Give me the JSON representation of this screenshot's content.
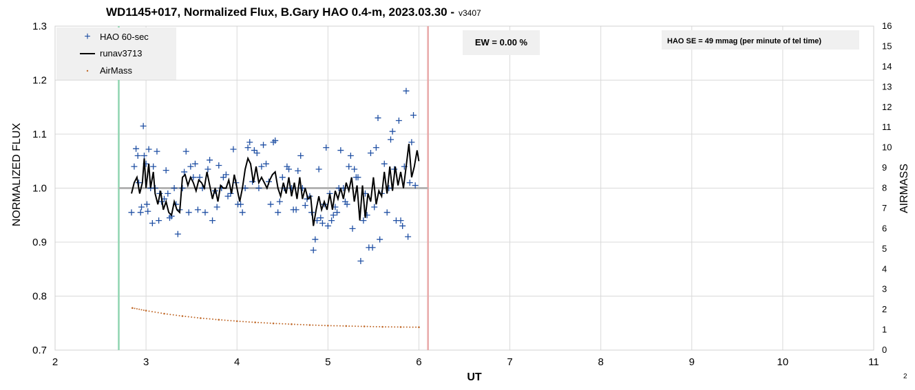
{
  "chart_data": {
    "type": "scatter",
    "title": "WD1145+017, Normalized Flux, B.Gary HAO 0.4-m, 2023.03.30 -",
    "title_version": "v3407",
    "xlabel": "UT",
    "ylabel": "NORMALIZED FLUX",
    "y2label": "AIRMASS",
    "xlim": [
      2,
      11
    ],
    "ylim": [
      0.7,
      1.3
    ],
    "y2lim": [
      0,
      16
    ],
    "x_ticks": [
      "2",
      "3",
      "4",
      "5",
      "6",
      "7",
      "8",
      "9",
      "10",
      "11"
    ],
    "y_ticks": [
      "0.7",
      "0.8",
      "0.9",
      "1.0",
      "1.1",
      "1.2",
      "1.3"
    ],
    "y2_ticks": [
      "0",
      "1",
      "2",
      "3",
      "4",
      "5",
      "6",
      "7",
      "8",
      "9",
      "10",
      "11",
      "12",
      "13",
      "14",
      "15",
      "16"
    ],
    "grid": true,
    "legend_placement": "top-left",
    "page_number": "2",
    "annotations": {
      "ew": "EW = 0.00 %",
      "se": "HAO SE =  49 mmag (per minute of tel time)"
    },
    "reference_lines": {
      "baseline_y": 1.0,
      "baseline_x_range": [
        2.7,
        6.1
      ],
      "start_ut": 2.7,
      "end_ut": 6.1
    },
    "colors": {
      "points": "#1f4fa3",
      "runav": "#000000",
      "airmass": "#c0692a",
      "start_line": "#8fd4b0",
      "end_line": "#e8a8a8",
      "baseline": "#b3b3b3",
      "grid": "#d9d9d9"
    },
    "series": [
      {
        "name": "HAO 60-sec",
        "marker": "plus",
        "points": [
          [
            2.84,
            0.955
          ],
          [
            2.87,
            1.04
          ],
          [
            2.89,
            1.073
          ],
          [
            2.91,
            1.06
          ],
          [
            2.92,
            1.01
          ],
          [
            2.94,
            0.955
          ],
          [
            2.95,
            0.965
          ],
          [
            2.97,
            1.115
          ],
          [
            2.98,
            1.06
          ],
          [
            3.0,
            1.045
          ],
          [
            3.01,
            0.97
          ],
          [
            3.02,
            0.957
          ],
          [
            3.03,
            1.072
          ],
          [
            3.05,
            1.0
          ],
          [
            3.07,
            0.935
          ],
          [
            3.08,
            1.04
          ],
          [
            3.1,
            1.0
          ],
          [
            3.12,
            1.068
          ],
          [
            3.14,
            0.94
          ],
          [
            3.15,
            0.99
          ],
          [
            3.17,
            0.975
          ],
          [
            3.2,
            0.98
          ],
          [
            3.22,
            1.033
          ],
          [
            3.24,
            0.99
          ],
          [
            3.26,
            0.945
          ],
          [
            3.28,
            0.948
          ],
          [
            3.31,
            1.0
          ],
          [
            3.33,
            0.97
          ],
          [
            3.35,
            0.915
          ],
          [
            3.37,
            0.96
          ],
          [
            3.4,
            1.0
          ],
          [
            3.42,
            1.03
          ],
          [
            3.44,
            1.068
          ],
          [
            3.47,
            0.955
          ],
          [
            3.49,
            1.04
          ],
          [
            3.52,
            1.02
          ],
          [
            3.54,
            1.045
          ],
          [
            3.57,
            0.96
          ],
          [
            3.59,
            1.02
          ],
          [
            3.62,
            1.0
          ],
          [
            3.65,
            0.955
          ],
          [
            3.68,
            1.035
          ],
          [
            3.7,
            1.052
          ],
          [
            3.73,
            0.94
          ],
          [
            3.76,
            0.995
          ],
          [
            3.78,
            0.965
          ],
          [
            3.8,
            1.042
          ],
          [
            3.83,
            1.0
          ],
          [
            3.85,
            1.02
          ],
          [
            3.88,
            1.025
          ],
          [
            3.9,
            0.985
          ],
          [
            3.93,
            0.99
          ],
          [
            3.96,
            1.072
          ],
          [
            3.99,
            1.01
          ],
          [
            4.01,
            0.97
          ],
          [
            4.04,
            0.97
          ],
          [
            4.06,
            0.955
          ],
          [
            4.09,
            1.0
          ],
          [
            4.12,
            1.075
          ],
          [
            4.14,
            1.085
          ],
          [
            4.17,
            1.012
          ],
          [
            4.19,
            1.07
          ],
          [
            4.22,
            1.065
          ],
          [
            4.24,
            1.0
          ],
          [
            4.27,
            1.04
          ],
          [
            4.29,
            1.08
          ],
          [
            4.32,
            1.045
          ],
          [
            4.35,
            1.012
          ],
          [
            4.37,
            0.97
          ],
          [
            4.4,
            1.085
          ],
          [
            4.42,
            1.088
          ],
          [
            4.45,
            0.955
          ],
          [
            4.47,
            0.975
          ],
          [
            4.5,
            1.02
          ],
          [
            4.52,
            1.0
          ],
          [
            4.55,
            1.04
          ],
          [
            4.57,
            1.035
          ],
          [
            4.6,
            1.0
          ],
          [
            4.62,
            0.96
          ],
          [
            4.65,
            0.96
          ],
          [
            4.67,
            1.032
          ],
          [
            4.7,
            1.06
          ],
          [
            4.72,
            1.0
          ],
          [
            4.75,
            0.968
          ],
          [
            4.77,
            0.98
          ],
          [
            4.8,
            0.985
          ],
          [
            4.82,
            0.955
          ],
          [
            4.84,
            0.885
          ],
          [
            4.86,
            0.905
          ],
          [
            4.88,
            0.94
          ],
          [
            4.9,
            1.035
          ],
          [
            4.92,
            0.945
          ],
          [
            4.94,
            0.935
          ],
          [
            4.96,
            0.97
          ],
          [
            4.98,
            1.075
          ],
          [
            5.0,
            0.93
          ],
          [
            5.02,
            0.99
          ],
          [
            5.04,
            0.94
          ],
          [
            5.06,
            0.95
          ],
          [
            5.08,
            0.965
          ],
          [
            5.1,
            0.955
          ],
          [
            5.12,
            1.0
          ],
          [
            5.14,
            1.07
          ],
          [
            5.17,
            1.0
          ],
          [
            5.19,
            0.975
          ],
          [
            5.21,
            0.97
          ],
          [
            5.23,
            1.04
          ],
          [
            5.25,
            1.06
          ],
          [
            5.27,
            0.925
          ],
          [
            5.29,
            1.035
          ],
          [
            5.31,
            1.02
          ],
          [
            5.33,
            1.02
          ],
          [
            5.36,
            0.865
          ],
          [
            5.39,
            0.94
          ],
          [
            5.41,
            0.99
          ],
          [
            5.43,
            0.95
          ],
          [
            5.45,
            0.89
          ],
          [
            5.47,
            1.065
          ],
          [
            5.49,
            0.89
          ],
          [
            5.51,
            0.965
          ],
          [
            5.53,
            1.075
          ],
          [
            5.55,
            1.13
          ],
          [
            5.57,
            0.905
          ],
          [
            5.59,
            0.99
          ],
          [
            5.62,
            1.045
          ],
          [
            5.65,
            0.955
          ],
          [
            5.67,
            1.0
          ],
          [
            5.69,
            1.09
          ],
          [
            5.71,
            1.105
          ],
          [
            5.73,
            1.035
          ],
          [
            5.75,
            0.94
          ],
          [
            5.78,
            1.125
          ],
          [
            5.8,
            0.94
          ],
          [
            5.82,
            0.93
          ],
          [
            5.84,
            1.04
          ],
          [
            5.86,
            1.18
          ],
          [
            5.88,
            0.91
          ],
          [
            5.9,
            1.01
          ],
          [
            5.92,
            1.085
          ],
          [
            5.94,
            1.135
          ],
          [
            5.96,
            1.005
          ]
        ]
      },
      {
        "name": "runav3713",
        "marker": "line",
        "points": [
          [
            2.84,
            0.99
          ],
          [
            2.87,
            1.01
          ],
          [
            2.9,
            1.02
          ],
          [
            2.93,
            0.99
          ],
          [
            2.96,
            1.01
          ],
          [
            2.98,
            1.055
          ],
          [
            3.0,
            1.0
          ],
          [
            3.03,
            1.045
          ],
          [
            3.05,
            1.0
          ],
          [
            3.08,
            1.03
          ],
          [
            3.1,
            0.99
          ],
          [
            3.13,
            0.97
          ],
          [
            3.16,
            0.995
          ],
          [
            3.19,
            0.96
          ],
          [
            3.22,
            0.975
          ],
          [
            3.25,
            0.955
          ],
          [
            3.28,
            0.95
          ],
          [
            3.31,
            0.975
          ],
          [
            3.34,
            0.96
          ],
          [
            3.37,
            0.955
          ],
          [
            3.4,
            1.02
          ],
          [
            3.43,
            1.025
          ],
          [
            3.46,
            1.005
          ],
          [
            3.49,
            1.02
          ],
          [
            3.52,
            1.01
          ],
          [
            3.55,
            0.995
          ],
          [
            3.58,
            1.015
          ],
          [
            3.61,
            1.01
          ],
          [
            3.64,
            1.0
          ],
          [
            3.67,
            1.03
          ],
          [
            3.7,
            1.005
          ],
          [
            3.73,
            0.98
          ],
          [
            3.76,
            1.0
          ],
          [
            3.79,
            0.975
          ],
          [
            3.82,
            1.005
          ],
          [
            3.85,
            1.0
          ],
          [
            3.88,
            1.0
          ],
          [
            3.91,
            1.015
          ],
          [
            3.94,
            0.99
          ],
          [
            3.97,
            1.025
          ],
          [
            4.0,
            1.0
          ],
          [
            4.03,
            0.975
          ],
          [
            4.06,
            1.0
          ],
          [
            4.09,
            1.035
          ],
          [
            4.12,
            1.055
          ],
          [
            4.15,
            1.045
          ],
          [
            4.18,
            1.01
          ],
          [
            4.21,
            1.04
          ],
          [
            4.24,
            1.01
          ],
          [
            4.27,
            1.02
          ],
          [
            4.3,
            1.01
          ],
          [
            4.33,
            1.0
          ],
          [
            4.36,
            1.015
          ],
          [
            4.39,
            1.025
          ],
          [
            4.42,
            1.03
          ],
          [
            4.45,
            1.0
          ],
          [
            4.48,
            0.985
          ],
          [
            4.51,
            1.01
          ],
          [
            4.54,
            0.99
          ],
          [
            4.57,
            1.02
          ],
          [
            4.6,
            0.985
          ],
          [
            4.63,
            1.01
          ],
          [
            4.66,
            0.98
          ],
          [
            4.69,
            1.02
          ],
          [
            4.72,
            0.98
          ],
          [
            4.75,
            1.0
          ],
          [
            4.78,
            0.98
          ],
          [
            4.81,
            0.985
          ],
          [
            4.84,
            0.93
          ],
          [
            4.87,
            0.96
          ],
          [
            4.9,
            0.985
          ],
          [
            4.93,
            0.96
          ],
          [
            4.96,
            0.975
          ],
          [
            4.99,
            0.96
          ],
          [
            5.02,
            0.99
          ],
          [
            5.05,
            0.96
          ],
          [
            5.08,
            0.995
          ],
          [
            5.11,
            0.98
          ],
          [
            5.14,
            1.0
          ],
          [
            5.17,
            0.98
          ],
          [
            5.2,
            1.01
          ],
          [
            5.23,
            0.995
          ],
          [
            5.26,
            1.02
          ],
          [
            5.29,
            0.975
          ],
          [
            5.32,
            1.005
          ],
          [
            5.35,
            0.94
          ],
          [
            5.38,
            1.005
          ],
          [
            5.41,
            0.945
          ],
          [
            5.44,
            0.99
          ],
          [
            5.47,
            0.975
          ],
          [
            5.5,
            1.02
          ],
          [
            5.53,
            0.97
          ],
          [
            5.56,
            0.995
          ],
          [
            5.59,
            0.985
          ],
          [
            5.62,
            1.03
          ],
          [
            5.65,
            0.99
          ],
          [
            5.68,
            1.04
          ],
          [
            5.71,
            0.995
          ],
          [
            5.74,
            1.04
          ],
          [
            5.77,
            1.005
          ],
          [
            5.8,
            1.03
          ],
          [
            5.83,
            1.0
          ],
          [
            5.86,
            1.04
          ],
          [
            5.89,
            1.082
          ],
          [
            5.92,
            1.02
          ],
          [
            5.95,
            1.04
          ],
          [
            5.98,
            1.07
          ],
          [
            6.0,
            1.05
          ]
        ]
      },
      {
        "name": "AirMass",
        "marker": "dot",
        "axis": "right",
        "points": [
          [
            2.85,
            2.08
          ],
          [
            3.0,
            1.95
          ],
          [
            3.2,
            1.8
          ],
          [
            3.4,
            1.68
          ],
          [
            3.6,
            1.58
          ],
          [
            3.8,
            1.5
          ],
          [
            4.0,
            1.43
          ],
          [
            4.2,
            1.37
          ],
          [
            4.4,
            1.32
          ],
          [
            4.6,
            1.28
          ],
          [
            4.8,
            1.24
          ],
          [
            5.0,
            1.21
          ],
          [
            5.2,
            1.19
          ],
          [
            5.4,
            1.17
          ],
          [
            5.6,
            1.15
          ],
          [
            5.8,
            1.14
          ],
          [
            6.0,
            1.13
          ]
        ]
      }
    ]
  }
}
